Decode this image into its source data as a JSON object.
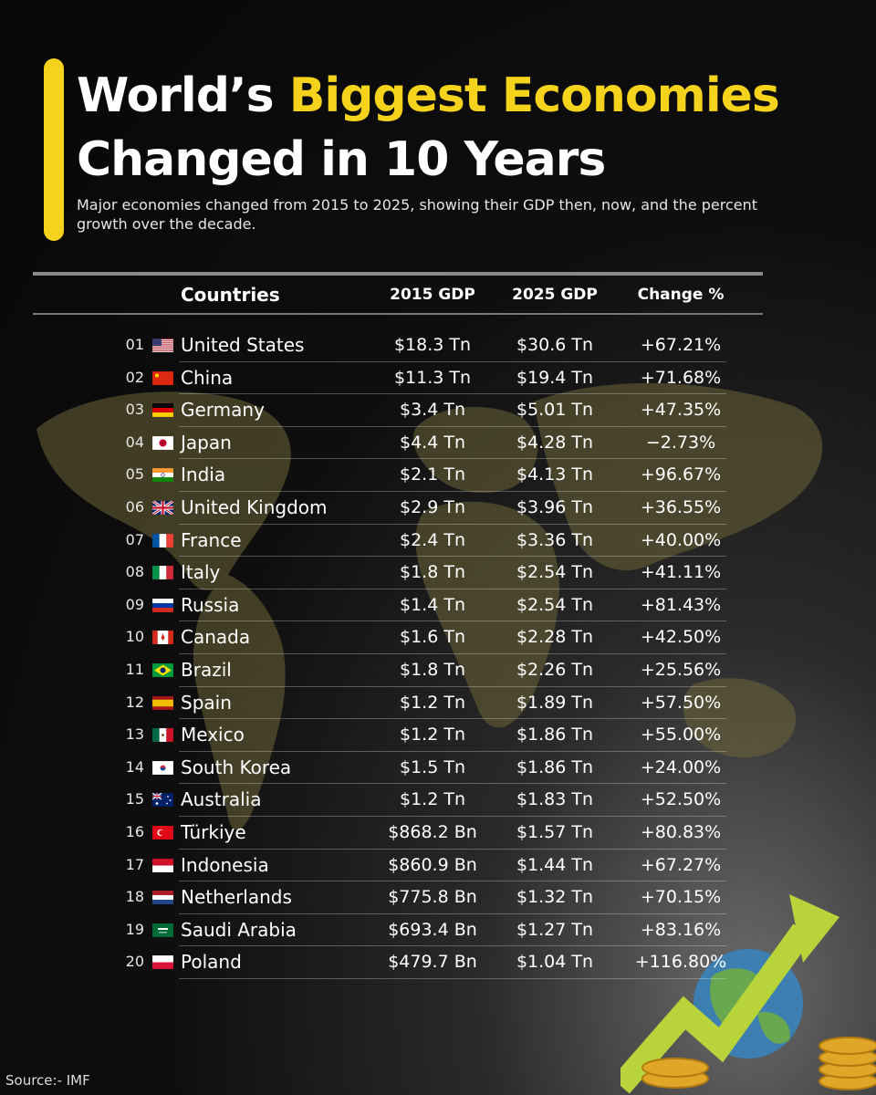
{
  "header": {
    "title_line1_white": "World’s",
    "title_line1_yellow": "Biggest Economies",
    "title_line2": "Changed in 10 Years",
    "subtitle": "Major economies changed from 2015 to 2025, showing their GDP then, now, and the percent growth over the decade."
  },
  "colors": {
    "accent": "#f5d31c",
    "background": "#0b0b0b",
    "text": "#ffffff"
  },
  "chart_data": {
    "type": "table",
    "columns": [
      "Countries",
      "2015 GDP",
      "2025 GDP",
      "Change %"
    ],
    "rows": [
      {
        "rank": "01",
        "country": "United States",
        "flag": "us-flag",
        "gdp_2015": "$18.3 Tn",
        "gdp_2025": "$30.6 Tn",
        "change": "+67.21%"
      },
      {
        "rank": "02",
        "country": "China",
        "flag": "cn-flag",
        "gdp_2015": "$11.3 Tn",
        "gdp_2025": "$19.4 Tn",
        "change": "+71.68%"
      },
      {
        "rank": "03",
        "country": "Germany",
        "flag": "de-flag",
        "gdp_2015": "$3.4 Tn",
        "gdp_2025": "$5.01 Tn",
        "change": "+47.35%"
      },
      {
        "rank": "04",
        "country": "Japan",
        "flag": "jp-flag",
        "gdp_2015": "$4.4 Tn",
        "gdp_2025": "$4.28 Tn",
        "change": "−2.73%"
      },
      {
        "rank": "05",
        "country": "India",
        "flag": "in-flag",
        "gdp_2015": "$2.1 Tn",
        "gdp_2025": "$4.13 Tn",
        "change": "+96.67%"
      },
      {
        "rank": "06",
        "country": "United Kingdom",
        "flag": "gb-flag",
        "gdp_2015": "$2.9 Tn",
        "gdp_2025": "$3.96 Tn",
        "change": "+36.55%"
      },
      {
        "rank": "07",
        "country": "France",
        "flag": "fr-flag",
        "gdp_2015": "$2.4 Tn",
        "gdp_2025": "$3.36 Tn",
        "change": "+40.00%"
      },
      {
        "rank": "08",
        "country": "Italy",
        "flag": "it-flag",
        "gdp_2015": "$1.8 Tn",
        "gdp_2025": "$2.54 Tn",
        "change": "+41.11%"
      },
      {
        "rank": "09",
        "country": "Russia",
        "flag": "ru-flag",
        "gdp_2015": "$1.4 Tn",
        "gdp_2025": "$2.54 Tn",
        "change": "+81.43%"
      },
      {
        "rank": "10",
        "country": "Canada",
        "flag": "ca-flag",
        "gdp_2015": "$1.6 Tn",
        "gdp_2025": "$2.28 Tn",
        "change": "+42.50%"
      },
      {
        "rank": "11",
        "country": "Brazil",
        "flag": "br-flag",
        "gdp_2015": "$1.8 Tn",
        "gdp_2025": "$2.26 Tn",
        "change": "+25.56%"
      },
      {
        "rank": "12",
        "country": "Spain",
        "flag": "es-flag",
        "gdp_2015": "$1.2 Tn",
        "gdp_2025": "$1.89 Tn",
        "change": "+57.50%"
      },
      {
        "rank": "13",
        "country": "Mexico",
        "flag": "mx-flag",
        "gdp_2015": "$1.2 Tn",
        "gdp_2025": "$1.86 Tn",
        "change": "+55.00%"
      },
      {
        "rank": "14",
        "country": "South Korea",
        "flag": "kr-flag",
        "gdp_2015": "$1.5 Tn",
        "gdp_2025": "$1.86 Tn",
        "change": "+24.00%"
      },
      {
        "rank": "15",
        "country": "Australia",
        "flag": "au-flag",
        "gdp_2015": "$1.2 Tn",
        "gdp_2025": "$1.83 Tn",
        "change": "+52.50%"
      },
      {
        "rank": "16",
        "country": "Türkiye",
        "flag": "tr-flag",
        "gdp_2015": "$868.2 Bn",
        "gdp_2025": "$1.57 Tn",
        "change": "+80.83%"
      },
      {
        "rank": "17",
        "country": "Indonesia",
        "flag": "id-flag",
        "gdp_2015": "$860.9 Bn",
        "gdp_2025": "$1.44 Tn",
        "change": "+67.27%"
      },
      {
        "rank": "18",
        "country": "Netherlands",
        "flag": "nl-flag",
        "gdp_2015": "$775.8 Bn",
        "gdp_2025": "$1.32 Tn",
        "change": "+70.15%"
      },
      {
        "rank": "19",
        "country": "Saudi Arabia",
        "flag": "sa-flag",
        "gdp_2015": "$693.4 Bn",
        "gdp_2025": "$1.27 Tn",
        "change": "+83.16%"
      },
      {
        "rank": "20",
        "country": "Poland",
        "flag": "pl-flag",
        "gdp_2015": "$479.7 Bn",
        "gdp_2025": "$1.04 Tn",
        "change": "+116.80%"
      }
    ]
  },
  "footer": {
    "source": "Source:- IMF"
  }
}
